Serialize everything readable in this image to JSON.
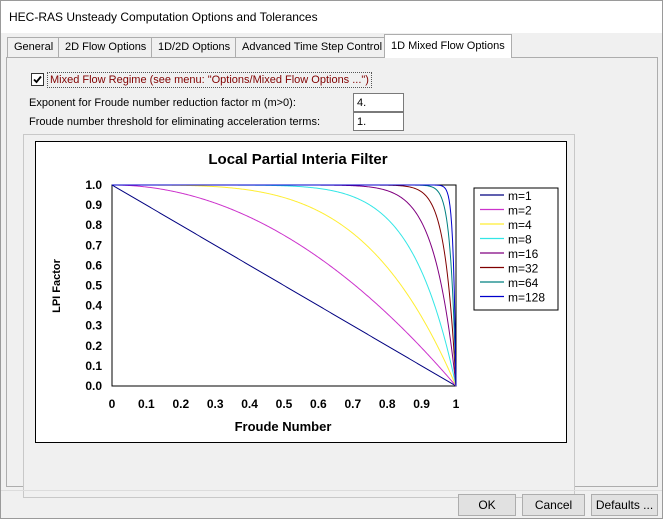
{
  "window": {
    "title": "HEC-RAS Unsteady Computation Options and Tolerances"
  },
  "tabs": [
    {
      "label": "General"
    },
    {
      "label": "2D Flow Options"
    },
    {
      "label": "1D/2D Options"
    },
    {
      "label": "Advanced Time Step Control"
    },
    {
      "label": "1D Mixed Flow Options"
    }
  ],
  "active_tab": "1D Mixed Flow Options",
  "mixed_flow": {
    "checkbox_label": "Mixed Flow Regime (see menu: \"Options/Mixed Flow Options ...\")",
    "checked": true
  },
  "fields": {
    "exponent_label": "Exponent for Froude number reduction factor m (m>0):",
    "exponent_value": "4.",
    "threshold_label": "Froude number threshold for eliminating acceleration terms:",
    "threshold_value": "1."
  },
  "buttons": {
    "ok": "OK",
    "cancel": "Cancel",
    "defaults": "Defaults ..."
  },
  "chart_data": {
    "type": "line",
    "title": "Local Partial Interia Filter",
    "xlabel": "Froude Number",
    "ylabel": "LPI Factor",
    "xlim": [
      0,
      1
    ],
    "ylim": [
      0,
      1
    ],
    "x_ticks": [
      "0",
      "0.1",
      "0.2",
      "0.3",
      "0.4",
      "0.5",
      "0.6",
      "0.7",
      "0.8",
      "0.9",
      "1"
    ],
    "y_ticks": [
      "0.0",
      "0.1",
      "0.2",
      "0.3",
      "0.4",
      "0.5",
      "0.6",
      "0.7",
      "0.8",
      "0.9",
      "1.0"
    ],
    "formula": "y = 1 - x^m",
    "legend_position": "right",
    "series": [
      {
        "name": "m=1",
        "m": 1,
        "color": "#000080"
      },
      {
        "name": "m=2",
        "m": 2,
        "color": "#cc33cc"
      },
      {
        "name": "m=4",
        "m": 4,
        "color": "#ffee33"
      },
      {
        "name": "m=8",
        "m": 8,
        "color": "#33e6e6"
      },
      {
        "name": "m=16",
        "m": 16,
        "color": "#800080"
      },
      {
        "name": "m=32",
        "m": 32,
        "color": "#800000"
      },
      {
        "name": "m=64",
        "m": 64,
        "color": "#008080"
      },
      {
        "name": "m=128",
        "m": 128,
        "color": "#0000cc"
      }
    ]
  }
}
